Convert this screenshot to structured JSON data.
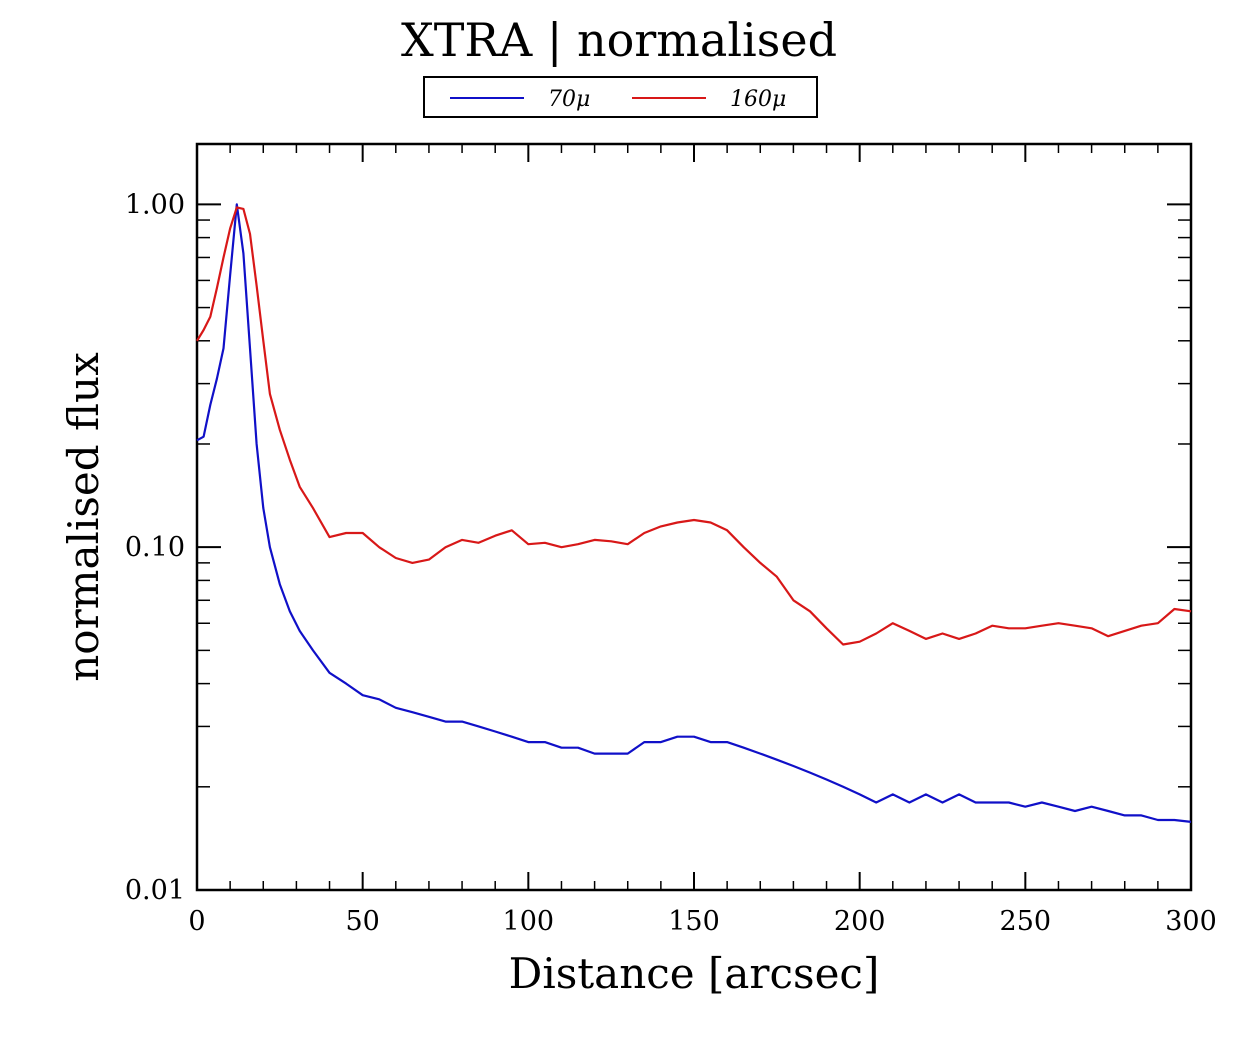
{
  "chart_data": {
    "type": "line",
    "title": "XTRA | normalised",
    "xlabel": "Distance [arcsec]",
    "ylabel": "normalised flux",
    "xlim": [
      0,
      300
    ],
    "ylim": [
      0.01,
      1.5
    ],
    "yscale": "log",
    "x_ticks": [
      0,
      50,
      100,
      150,
      200,
      250,
      300
    ],
    "x_tick_labels": [
      "0",
      "50",
      "100",
      "150",
      "200",
      "250",
      "300"
    ],
    "y_ticks": [
      0.01,
      0.1,
      1.0
    ],
    "y_tick_labels": [
      "0.01",
      "0.10",
      "1.00"
    ],
    "legend": {
      "position": "top-center"
    },
    "x": [
      0,
      2,
      4,
      6,
      8,
      10,
      12,
      14,
      16,
      18,
      20,
      22,
      25,
      28,
      31,
      35,
      40,
      45,
      50,
      55,
      60,
      65,
      70,
      75,
      80,
      85,
      90,
      95,
      100,
      105,
      110,
      115,
      120,
      125,
      130,
      135,
      140,
      145,
      150,
      155,
      160,
      165,
      170,
      175,
      180,
      185,
      190,
      195,
      200,
      205,
      210,
      215,
      220,
      225,
      230,
      235,
      240,
      245,
      250,
      255,
      260,
      265,
      270,
      275,
      280,
      285,
      290,
      295,
      300
    ],
    "series": [
      {
        "name": "70μ",
        "color": "#1010c8",
        "values": [
          0.205,
          0.21,
          0.26,
          0.31,
          0.38,
          0.62,
          1.0,
          0.72,
          0.38,
          0.2,
          0.13,
          0.1,
          0.078,
          0.065,
          0.057,
          0.05,
          0.043,
          0.04,
          0.037,
          0.036,
          0.034,
          0.033,
          0.032,
          0.031,
          0.031,
          0.03,
          0.029,
          0.028,
          0.027,
          0.027,
          0.026,
          0.026,
          0.025,
          0.025,
          0.025,
          0.027,
          0.027,
          0.028,
          0.028,
          0.027,
          0.027,
          0.026,
          0.025,
          0.024,
          0.023,
          0.022,
          0.021,
          0.02,
          0.019,
          0.018,
          0.019,
          0.018,
          0.019,
          0.018,
          0.019,
          0.018,
          0.018,
          0.018,
          0.0175,
          0.018,
          0.0175,
          0.017,
          0.0175,
          0.017,
          0.0165,
          0.0165,
          0.016,
          0.016,
          0.0158
        ]
      },
      {
        "name": "160μ",
        "color": "#d81818",
        "values": [
          0.4,
          0.43,
          0.47,
          0.57,
          0.7,
          0.85,
          0.98,
          0.97,
          0.82,
          0.58,
          0.4,
          0.28,
          0.22,
          0.18,
          0.15,
          0.13,
          0.107,
          0.11,
          0.11,
          0.1,
          0.093,
          0.09,
          0.092,
          0.1,
          0.105,
          0.103,
          0.108,
          0.112,
          0.102,
          0.103,
          0.1,
          0.102,
          0.105,
          0.104,
          0.102,
          0.11,
          0.115,
          0.118,
          0.12,
          0.118,
          0.112,
          0.1,
          0.09,
          0.082,
          0.07,
          0.065,
          0.058,
          0.052,
          0.053,
          0.056,
          0.06,
          0.057,
          0.054,
          0.056,
          0.054,
          0.056,
          0.059,
          0.058,
          0.058,
          0.059,
          0.06,
          0.059,
          0.058,
          0.055,
          0.057,
          0.059,
          0.06,
          0.066,
          0.065
        ]
      }
    ]
  }
}
